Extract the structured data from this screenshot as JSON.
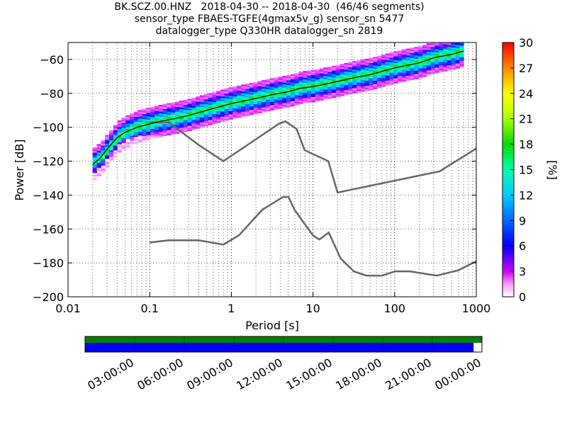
{
  "figure": {
    "title_lines": [
      "BK.SCZ.00.HNZ   2018-04-30 -- 2018-04-30  (46/46 segments)",
      "sensor_type FBAES-TGFE(4gmax5v_g) sensor_sn 5477",
      "datalogger_type Q330HR datalogger_sn 2819"
    ]
  },
  "chart_data": [
    {
      "type": "heatmap",
      "title": "",
      "xlabel": "Period [s]",
      "ylabel": "Power [dB]",
      "xscale": "log",
      "xlim": [
        0.01,
        1000
      ],
      "ylim": [
        -200,
        -50
      ],
      "x_tick_labels": [
        "0.01",
        "0.1",
        "1",
        "10",
        "100",
        "1000"
      ],
      "x_ticks": [
        0.01,
        0.1,
        1,
        10,
        100,
        1000
      ],
      "y_ticks": [
        -200,
        -180,
        -160,
        -140,
        -120,
        -100,
        -80,
        -60
      ],
      "grid": "dotted",
      "colorbar": {
        "label": "[%]",
        "range": [
          0,
          30
        ],
        "ticks": [
          0,
          3,
          6,
          9,
          12,
          15,
          18,
          21,
          24,
          27,
          30
        ]
      },
      "ppsd_mode": {
        "period": [
          0.02,
          0.025,
          0.03,
          0.04,
          0.05,
          0.07,
          0.1,
          0.15,
          0.2,
          0.3,
          0.5,
          1,
          2,
          3,
          5,
          7,
          10,
          20,
          30,
          50,
          70,
          100,
          200,
          300,
          500,
          700
        ],
        "power": [
          -122,
          -118,
          -113,
          -106,
          -103,
          -100,
          -98,
          -96,
          -95,
          -93,
          -90,
          -86,
          -83,
          -81,
          -79,
          -77,
          -76,
          -73,
          -71,
          -69,
          -67,
          -65,
          -62,
          -59,
          -57,
          -55
        ]
      },
      "nhnm": {
        "period": [
          0.1,
          0.17,
          0.4,
          0.8,
          3.8,
          4.6,
          6.3,
          7.9,
          15.4,
          20,
          354.8,
          1000
        ],
        "power": [
          -97.0,
          -97.0,
          -110.5,
          -120.0,
          -98.0,
          -96.5,
          -101.0,
          -113.5,
          -120.0,
          -138.5,
          -126.0,
          -112.5
        ]
      },
      "nlnm": {
        "period": [
          0.1,
          0.17,
          0.4,
          0.8,
          1.24,
          2.4,
          4.3,
          5.0,
          6.0,
          10.0,
          12.0,
          15.6,
          21.9,
          31.6,
          45.0,
          70.0,
          101.0,
          154.0,
          328.0,
          600.0,
          1000.0
        ],
        "power": [
          -168.0,
          -166.7,
          -166.7,
          -169.2,
          -163.7,
          -148.6,
          -141.1,
          -141.1,
          -149.0,
          -163.8,
          -166.2,
          -162.1,
          -177.5,
          -185.0,
          -187.5,
          -187.5,
          -185.0,
          -185.0,
          -187.5,
          -184.4,
          -179.0
        ]
      }
    },
    {
      "type": "timeline",
      "x_tick_labels": [
        "03:00:00",
        "06:00:00",
        "09:00:00",
        "12:00:00",
        "15:00:00",
        "18:00:00",
        "21:00:00",
        "00:00:00"
      ],
      "data_coverage_fraction": 1.0,
      "ppsd_coverage_fraction": 0.979,
      "colors": {
        "data": "#008000",
        "ppsd": "#0000ff"
      }
    }
  ]
}
